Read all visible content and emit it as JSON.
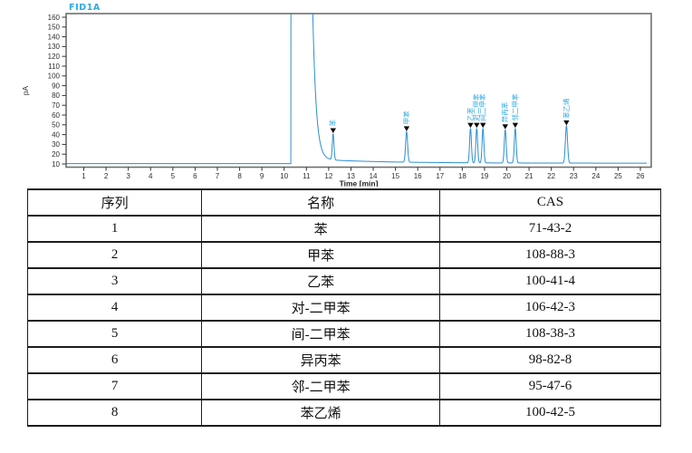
{
  "chart_data": {
    "type": "line",
    "title": "FID1A",
    "xlabel": "Time [min]",
    "ylabel": "pA",
    "xlim": [
      0.2,
      26.5
    ],
    "ylim": [
      7,
      164
    ],
    "xticks": [
      1,
      2,
      3,
      4,
      5,
      6,
      7,
      8,
      9,
      10,
      11,
      12,
      13,
      14,
      15,
      16,
      17,
      18,
      19,
      20,
      21,
      22,
      23,
      24,
      25,
      26
    ],
    "yticks": [
      10,
      20,
      30,
      40,
      50,
      60,
      70,
      80,
      90,
      100,
      110,
      120,
      130,
      140,
      150,
      160
    ],
    "grid": false,
    "baseline_pA": 10.3,
    "solvent_peak": {
      "start_min": 10.3,
      "end_min": 11.28,
      "offscale": true
    },
    "peaks": [
      {
        "label": "苯",
        "time_min": 12.2,
        "height_pA": 41.0,
        "sigma": 0.038
      },
      {
        "label": "甲苯",
        "time_min": 15.5,
        "height_pA": 43.0,
        "sigma": 0.045
      },
      {
        "label": "乙苯",
        "time_min": 18.37,
        "height_pA": 46.5,
        "sigma": 0.04
      },
      {
        "label": "对二甲苯",
        "time_min": 18.65,
        "height_pA": 46.5,
        "sigma": 0.04
      },
      {
        "label": "间二甲苯",
        "time_min": 18.93,
        "height_pA": 46.5,
        "sigma": 0.04
      },
      {
        "label": "异丙苯",
        "time_min": 19.93,
        "height_pA": 45.0,
        "sigma": 0.042
      },
      {
        "label": "邻二甲苯",
        "time_min": 20.38,
        "height_pA": 46.5,
        "sigma": 0.042
      },
      {
        "label": "苯乙烯",
        "time_min": 22.68,
        "height_pA": 49.0,
        "sigma": 0.048
      }
    ],
    "colors": {
      "trace": "#2b8fd0",
      "title": "#2fa9e1",
      "peak_label": "#2fa9e1",
      "marker": "#0a0a0a",
      "axis_text": "#2e2e2e",
      "frame": "#6f6f6f"
    }
  },
  "table": {
    "headers": [
      "序列",
      "名称",
      "CAS"
    ],
    "rows": [
      [
        "1",
        "苯",
        "71-43-2"
      ],
      [
        "2",
        "甲苯",
        "108-88-3"
      ],
      [
        "3",
        "乙苯",
        "100-41-4"
      ],
      [
        "4",
        "对-二甲苯",
        "106-42-3"
      ],
      [
        "5",
        "间-二甲苯",
        "108-38-3"
      ],
      [
        "6",
        "异丙苯",
        "98-82-8"
      ],
      [
        "7",
        "邻-二甲苯",
        "95-47-6"
      ],
      [
        "8",
        "苯乙烯",
        "100-42-5"
      ]
    ]
  }
}
